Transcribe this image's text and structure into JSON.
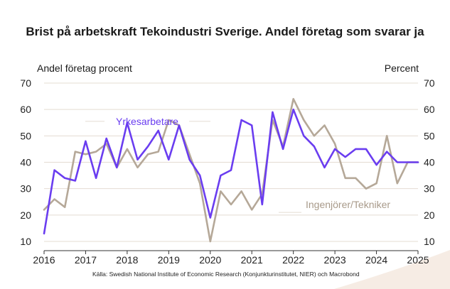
{
  "chart_data": {
    "type": "line",
    "title": "Brist på arbetskraft Tekoindustri Sverige. Andel företag som svarar ja",
    "ylabel_left": "Andel företag procent",
    "ylabel_right": "Percent",
    "ylim": [
      10,
      70
    ],
    "yticks": [
      "70",
      "60",
      "50",
      "40",
      "30",
      "20",
      "10"
    ],
    "xlim": [
      2016,
      2025
    ],
    "xticks": [
      "2016",
      "2017",
      "2018",
      "2019",
      "2020",
      "2021",
      "2022",
      "2023",
      "2024",
      "2025"
    ],
    "grid": "horizontal",
    "series": [
      {
        "name": "Yrkesarbetare",
        "color": "#6a3df0",
        "x": [
          2016.0,
          2016.25,
          2016.5,
          2016.75,
          2017.0,
          2017.25,
          2017.5,
          2017.75,
          2018.0,
          2018.25,
          2018.5,
          2018.75,
          2019.0,
          2019.25,
          2019.5,
          2019.75,
          2020.0,
          2020.25,
          2020.5,
          2020.75,
          2021.0,
          2021.25,
          2021.5,
          2021.75,
          2022.0,
          2022.25,
          2022.5,
          2022.75,
          2023.0,
          2023.25,
          2023.5,
          2023.75,
          2024.0,
          2024.25,
          2024.5,
          2024.75,
          2025.0
        ],
        "values": [
          13,
          37,
          34,
          33,
          48,
          34,
          49,
          38,
          55,
          41,
          46,
          52,
          41,
          54,
          41,
          35,
          19,
          35,
          37,
          56,
          54,
          24,
          59,
          45,
          60,
          50,
          46,
          38,
          45,
          42,
          45,
          45,
          39,
          44,
          40,
          40,
          40
        ]
      },
      {
        "name": "Ingenjörer/Tekniker",
        "color": "#b5a898",
        "x": [
          2016.0,
          2016.25,
          2016.5,
          2016.75,
          2017.0,
          2017.25,
          2017.5,
          2017.75,
          2018.0,
          2018.25,
          2018.5,
          2018.75,
          2019.0,
          2019.25,
          2019.5,
          2019.75,
          2020.0,
          2020.25,
          2020.5,
          2020.75,
          2021.0,
          2021.25,
          2021.5,
          2021.75,
          2022.0,
          2022.25,
          2022.5,
          2022.75,
          2023.0,
          2023.25,
          2023.5,
          2023.75,
          2024.0,
          2024.25,
          2024.5,
          2024.75,
          2025.0
        ],
        "values": [
          22,
          26,
          23,
          44,
          43,
          44,
          47,
          38,
          45,
          38,
          43,
          44,
          56,
          54,
          43,
          32,
          10,
          29,
          24,
          29,
          22,
          28,
          56,
          46,
          64,
          56,
          50,
          54,
          47,
          34,
          34,
          30,
          32,
          50,
          32,
          40,
          40
        ]
      }
    ],
    "annotations": {
      "source": "Källa: Swedish National Institute of Economic Research (Konjunkturinstitutet, NIER)  och Macrobond"
    }
  }
}
